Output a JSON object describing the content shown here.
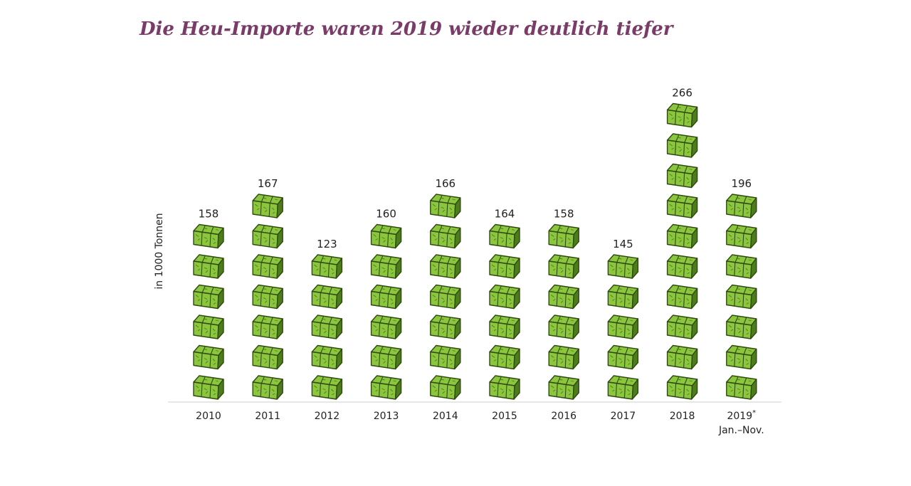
{
  "chart_data": {
    "type": "bar",
    "title": "Die Heu-Importe waren 2019 wieder deutlich tiefer",
    "ylabel": "in 1000 Tonnen",
    "categories": [
      "2010",
      "2011",
      "2012",
      "2013",
      "2014",
      "2015",
      "2016",
      "2017",
      "2018",
      "2019"
    ],
    "category_sublabels": [
      "",
      "",
      "",
      "",
      "",
      "",
      "",
      "",
      "",
      "Jan.–Nov."
    ],
    "category_markers": [
      "",
      "",
      "",
      "",
      "",
      "",
      "",
      "",
      "",
      "*"
    ],
    "values": [
      158,
      167,
      123,
      160,
      166,
      164,
      158,
      145,
      266,
      196
    ],
    "bale_counts": [
      6,
      7,
      5,
      6,
      7,
      6,
      6,
      5,
      10,
      7
    ],
    "ylim": [
      0,
      280
    ],
    "grid": false,
    "legend": "none",
    "colors": {
      "title": "#7a3b68",
      "bale_fill": "#8cc63f",
      "bale_dark": "#4d7d1a",
      "bale_outline": "#2e4a10",
      "baseline": "#cfcfcf"
    },
    "icon": "hay-bale-icon"
  }
}
